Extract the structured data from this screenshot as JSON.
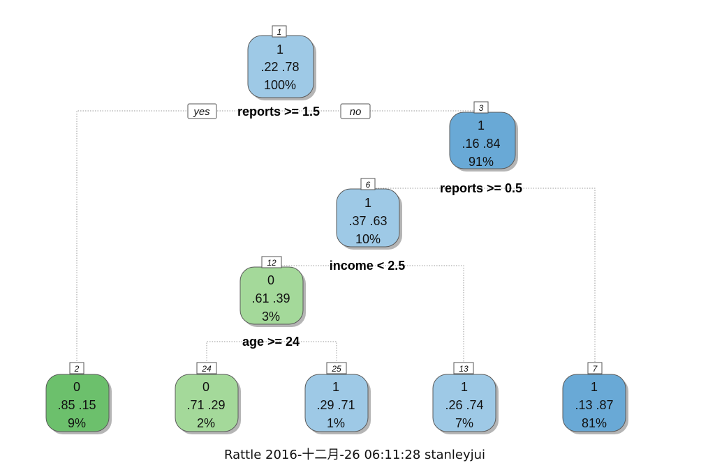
{
  "tree": {
    "colors": {
      "green_dark": "#6cc06c",
      "green_light": "#a4d99a",
      "blue_light": "#9ec9e6",
      "blue_dark": "#69a9d6"
    },
    "nodes": [
      {
        "id": "1",
        "class_label": "1",
        "probs": ".22  .78",
        "percent": "100%",
        "color": "#9ec9e6"
      },
      {
        "id": "3",
        "class_label": "1",
        "probs": ".16  .84",
        "percent": "91%",
        "color": "#69a9d6"
      },
      {
        "id": "6",
        "class_label": "1",
        "probs": ".37  .63",
        "percent": "10%",
        "color": "#9ec9e6"
      },
      {
        "id": "12",
        "class_label": "0",
        "probs": ".61  .39",
        "percent": "3%",
        "color": "#a4d99a"
      },
      {
        "id": "2",
        "class_label": "0",
        "probs": ".85  .15",
        "percent": "9%",
        "color": "#6cc06c"
      },
      {
        "id": "24",
        "class_label": "0",
        "probs": ".71  .29",
        "percent": "2%",
        "color": "#a4d99a"
      },
      {
        "id": "25",
        "class_label": "1",
        "probs": ".29  .71",
        "percent": "1%",
        "color": "#9ec9e6"
      },
      {
        "id": "13",
        "class_label": "1",
        "probs": ".26  .74",
        "percent": "7%",
        "color": "#9ec9e6"
      },
      {
        "id": "7",
        "class_label": "1",
        "probs": ".13  .87",
        "percent": "81%",
        "color": "#69a9d6"
      }
    ],
    "splits": [
      {
        "node": "1",
        "rule": "reports >= 1.5"
      },
      {
        "node": "3",
        "rule": "reports >= 0.5"
      },
      {
        "node": "6",
        "rule": "income < 2.5"
      },
      {
        "node": "12",
        "rule": "age >= 24"
      }
    ],
    "branch_labels": {
      "yes": "yes",
      "no": "no"
    }
  },
  "footer": "Rattle 2016-十二月-26 06:11:28 stanleyjui"
}
